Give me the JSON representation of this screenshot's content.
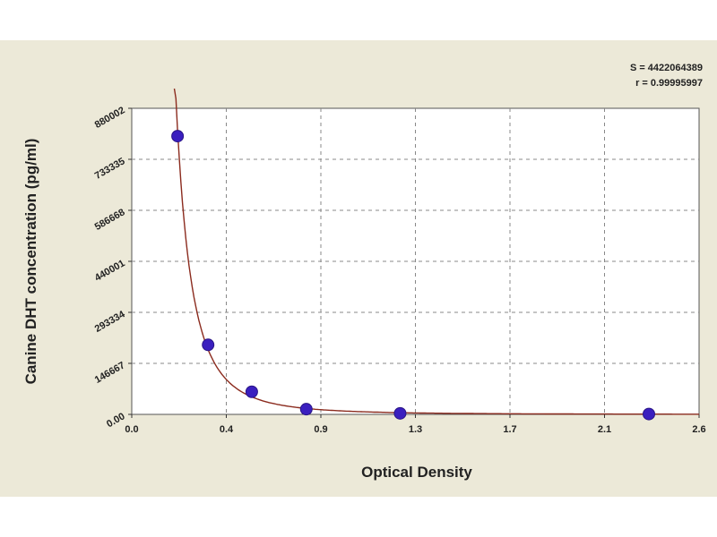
{
  "chart_data": {
    "type": "scatter",
    "xlabel": "Optical Density",
    "ylabel": "Canine DHT concentration (pg/ml)",
    "xlim": [
      0.0,
      2.6
    ],
    "ylim": [
      0,
      880002
    ],
    "x_ticks": [
      "0.0",
      "0.4",
      "0.9",
      "1.3",
      "1.7",
      "2.1",
      "2.6"
    ],
    "y_ticks": [
      "0.00",
      "146667",
      "293334",
      "440001",
      "586668",
      "733335",
      "880002"
    ],
    "grid": true,
    "series": [
      {
        "marker": "circle",
        "color": "#3a1fbf",
        "x": [
          0.21,
          0.35,
          0.55,
          0.8,
          1.23,
          2.37
        ],
        "y": [
          800000,
          200000,
          65000,
          15000,
          3000,
          1000
        ]
      }
    ],
    "fit_curve": {
      "color": "#8b2b1e",
      "equation_lines": [
        "S = 4422064389",
        "r = 0.99995997"
      ]
    }
  }
}
